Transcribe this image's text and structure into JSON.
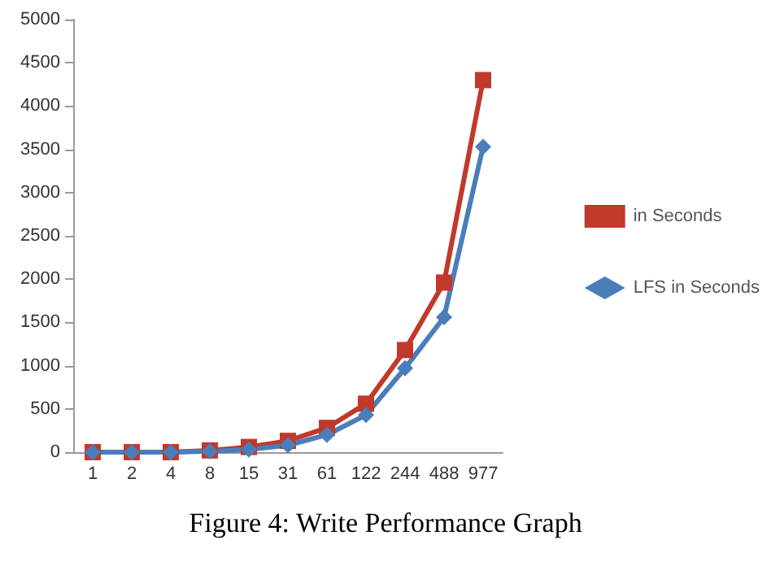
{
  "chart_data": {
    "type": "line",
    "categories": [
      "1",
      "2",
      "4",
      "8",
      "15",
      "31",
      "61",
      "122",
      "244",
      "488",
      "977"
    ],
    "series": [
      {
        "name": "in Seconds",
        "color": "#c0392b",
        "marker": "square",
        "values": [
          0,
          0,
          0,
          20,
          60,
          130,
          280,
          560,
          1180,
          1960,
          4300
        ]
      },
      {
        "name": "LFS in Seconds",
        "color": "#4a7ebb",
        "marker": "diamond",
        "values": [
          0,
          0,
          0,
          10,
          30,
          80,
          200,
          430,
          970,
          1560,
          3530
        ]
      }
    ],
    "ylim": [
      0,
      5000
    ],
    "yticks": [
      0,
      500,
      1000,
      1500,
      2000,
      2500,
      3000,
      3500,
      4000,
      4500,
      5000
    ],
    "grid": false,
    "legend": "right",
    "line_style": "solid",
    "annotations": [
      "Figure 4: Write Performance Graph"
    ]
  }
}
